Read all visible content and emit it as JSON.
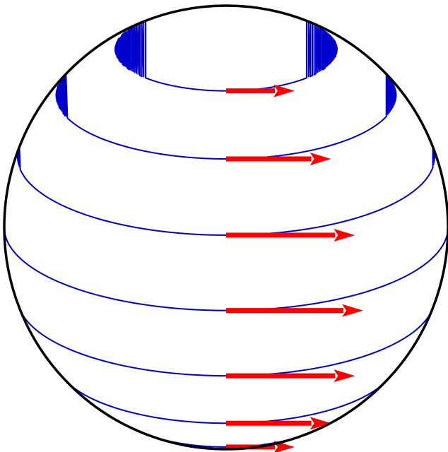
{
  "diagram": {
    "type": "sphere-rotation-velocity",
    "latitudes_deg": [
      60,
      40,
      20,
      0,
      -20,
      -40,
      -60
    ],
    "relative_speeds": [
      0.5,
      0.766,
      0.94,
      1.0,
      0.94,
      0.766,
      0.5
    ],
    "colors": {
      "sphere_outline": "#000000",
      "latitude_line": "#0000cc",
      "velocity_arrow": "#ff0000",
      "background": "#ffffff"
    }
  }
}
